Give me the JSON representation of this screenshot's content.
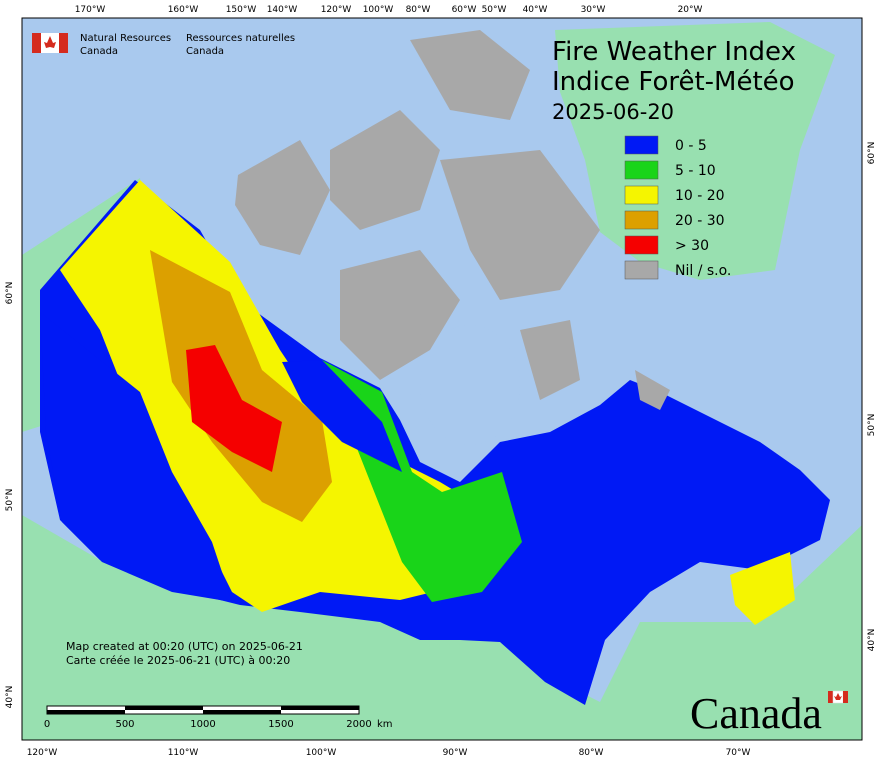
{
  "header": {
    "department_en": [
      "Natural Resources",
      "Canada"
    ],
    "department_fr": [
      "Ressources naturelles",
      "Canada"
    ]
  },
  "title": {
    "en": "Fire Weather Index",
    "fr": "Indice Forêt-Météo",
    "date": "2025-06-20"
  },
  "legend": [
    {
      "label": "0 - 5",
      "color": "#0019f5"
    },
    {
      "label": "5 - 10",
      "color": "#19d419"
    },
    {
      "label": "10 - 20",
      "color": "#f5f500"
    },
    {
      "label": "20 - 30",
      "color": "#dca000"
    },
    {
      "label": "> 30",
      "color": "#f50000"
    },
    {
      "label": "Nil / s.o.",
      "color": "#a8a8a8"
    }
  ],
  "graticule": {
    "top": [
      "170°W",
      "160°W",
      "150°W",
      "140°W",
      "120°W",
      "100°W",
      "80°W",
      "60°W",
      "50°W",
      "40°W",
      "30°W",
      "20°W"
    ],
    "bottom": [
      "120°W",
      "110°W",
      "100°W",
      "90°W",
      "80°W",
      "70°W"
    ],
    "left": [
      "60°N",
      "50°N",
      "40°N"
    ],
    "right": [
      "60°N",
      "50°N",
      "40°N"
    ]
  },
  "footer": {
    "created_en": "Map created at 00:20 (UTC) on 2025-06-21",
    "created_fr": "Carte créée le 2025-06-21 (UTC) à 00:20"
  },
  "scale_bar": {
    "labels": [
      "0",
      "500",
      "1000",
      "1500",
      "2000"
    ],
    "unit": "km"
  },
  "wordmark": "Canada"
}
